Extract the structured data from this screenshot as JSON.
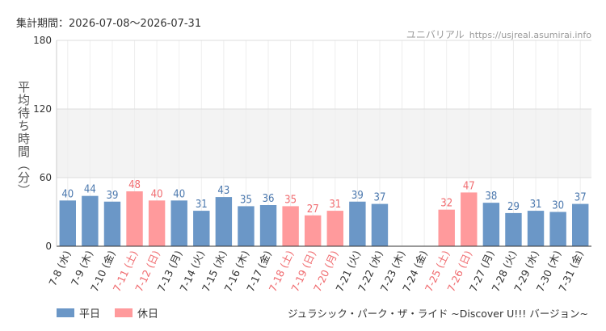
{
  "header": {
    "period": "集計期間：2026-07-08〜2026-07-31",
    "site_name": "ユニバリアル",
    "site_url": "https://usjreal.asumirai.info"
  },
  "legend": {
    "weekday": "平日",
    "holiday": "休日"
  },
  "attraction": "ジュラシック・パーク・ザ・ライド ~Discover U!!! バージョン~",
  "colors": {
    "weekday": "#6b97c7",
    "holiday": "#ff9a9c",
    "weekday_label": "#4a77ad",
    "holiday_label": "#f06b6f",
    "band": "#f3f3f3"
  },
  "chart_data": {
    "type": "bar",
    "ylabel": "平均待ち時間（分）",
    "ylim": [
      0,
      180
    ],
    "yticks": [
      0,
      60,
      120,
      180
    ],
    "grid": true,
    "legend_position": "bottom-left",
    "categories": [
      "7-8 (水)",
      "7-9 (木)",
      "7-10 (金)",
      "7-11 (土)",
      "7-12 (日)",
      "7-13 (月)",
      "7-14 (火)",
      "7-15 (水)",
      "7-16 (木)",
      "7-17 (金)",
      "7-18 (土)",
      "7-19 (日)",
      "7-20 (月)",
      "7-21 (火)",
      "7-22 (水)",
      "7-23 (木)",
      "7-24 (金)",
      "7-25 (土)",
      "7-26 (日)",
      "7-27 (月)",
      "7-28 (火)",
      "7-29 (水)",
      "7-30 (木)",
      "7-31 (金)"
    ],
    "values": [
      40,
      44,
      39,
      48,
      40,
      40,
      31,
      43,
      35,
      36,
      35,
      27,
      31,
      39,
      37,
      null,
      null,
      32,
      47,
      38,
      29,
      31,
      30,
      37
    ],
    "day_type": [
      "平日",
      "平日",
      "平日",
      "休日",
      "休日",
      "平日",
      "平日",
      "平日",
      "平日",
      "平日",
      "休日",
      "休日",
      "休日",
      "平日",
      "平日",
      "平日",
      "平日",
      "休日",
      "休日",
      "平日",
      "平日",
      "平日",
      "平日",
      "平日"
    ]
  }
}
